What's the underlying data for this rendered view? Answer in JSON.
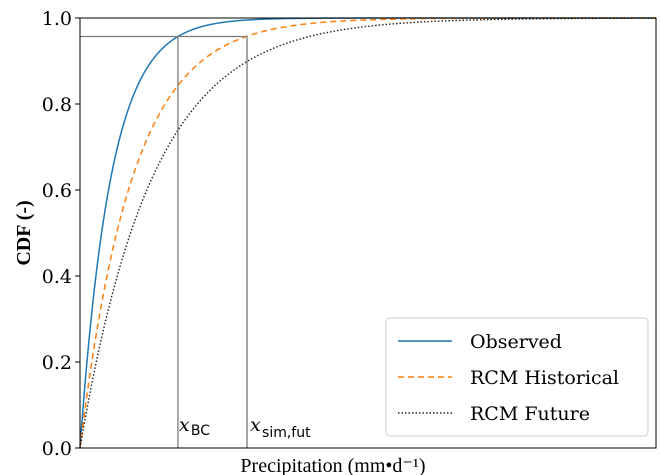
{
  "chart_data": {
    "type": "line",
    "xlabel": "Precipitation (mm•d⁻¹)",
    "ylabel": "CDF (-)",
    "xlim": [
      0,
      1
    ],
    "ylim": [
      0,
      1
    ],
    "x_ticks_shown": false,
    "y_ticks": [
      "0.0",
      "0.2",
      "0.4",
      "0.6",
      "0.8",
      "1.0"
    ],
    "grid": false,
    "legend_position": "bottom-right",
    "series": [
      {
        "name": "Observed",
        "style": "solid",
        "color": "#1f77b4",
        "rate": 18.5
      },
      {
        "name": "RCM Historical",
        "style": "dashed",
        "color": "#ff7f0e",
        "rate": 10.9
      },
      {
        "name": "RCM Future",
        "style": "dotted",
        "color": "#222222",
        "rate": 7.9
      }
    ],
    "annotations": {
      "quantile_level": 0.957,
      "x_bc": 0.17,
      "x_sim_fut": 0.29,
      "x_bc_label_main": "x",
      "x_bc_label_sub": "BC",
      "x_sim_fut_label_main": "x",
      "x_sim_fut_label_sub": "sim,fut",
      "guide_color": "#7a7a7a"
    }
  }
}
